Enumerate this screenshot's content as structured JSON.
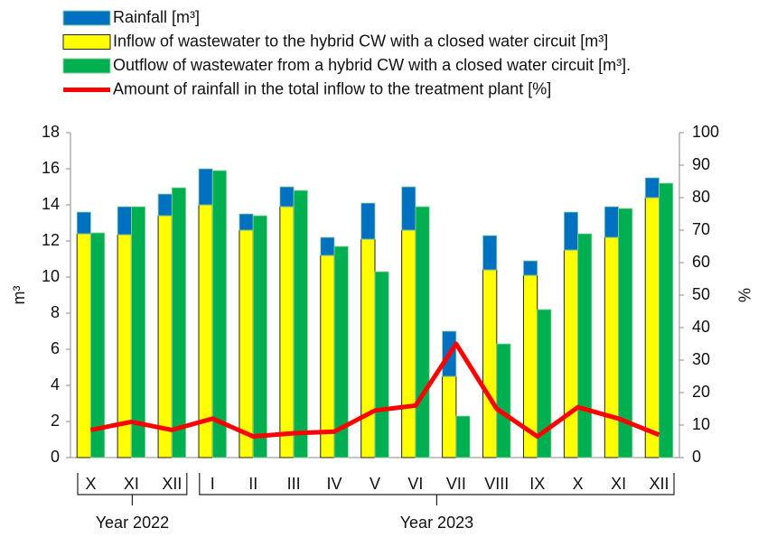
{
  "chart_data": {
    "type": "bar",
    "y_label": "m³",
    "y2_label": "%",
    "categories": [
      "X",
      "XI",
      "XII",
      "I",
      "II",
      "III",
      "IV",
      "V",
      "VI",
      "VII",
      "VIII",
      "IX",
      "X",
      "XI",
      "XII"
    ],
    "groups": [
      {
        "label": "Year 2022",
        "span": 3
      },
      {
        "label": "Year 2023",
        "span": 12
      }
    ],
    "series": [
      {
        "name": "Rainfall [m³]",
        "color": "#0070c0",
        "stack": "inflow",
        "values": [
          1.2,
          1.55,
          1.2,
          2.0,
          0.9,
          1.1,
          1.0,
          2.0,
          2.4,
          2.5,
          1.9,
          0.8,
          2.1,
          1.7,
          1.1
        ]
      },
      {
        "name": "Inflow of wastewater to the hybrid CW with a closed water circuit [m³]",
        "color": "#ffff00",
        "stack": "inflow",
        "values": [
          12.4,
          12.35,
          13.4,
          14.0,
          12.6,
          13.9,
          11.2,
          12.1,
          12.6,
          4.5,
          10.4,
          10.1,
          11.5,
          12.2,
          14.4
        ]
      },
      {
        "name": "Outflow of wastewater from a hybrid CW with a closed water circuit [m³].",
        "color": "#00b050",
        "stack": "outflow",
        "values": [
          12.45,
          13.9,
          14.95,
          15.9,
          13.4,
          14.8,
          11.7,
          10.3,
          13.9,
          2.3,
          6.3,
          8.2,
          12.4,
          13.8,
          15.2
        ]
      },
      {
        "name": "Amount of rainfall in the total inflow to the treatment plant [%]",
        "color": "#ff0000",
        "type": "line",
        "axis": "y2",
        "values": [
          8.5,
          11,
          8.5,
          12,
          6.5,
          7.5,
          8,
          14.5,
          16,
          35,
          15,
          6.5,
          15.5,
          12,
          7
        ]
      }
    ],
    "ylim": [
      0,
      18
    ],
    "yticks": [
      0,
      2,
      4,
      6,
      8,
      10,
      12,
      14,
      16,
      18
    ],
    "y2lim": [
      0,
      100
    ],
    "y2ticks": [
      0,
      10,
      20,
      30,
      40,
      50,
      60,
      70,
      80,
      90,
      100
    ]
  }
}
